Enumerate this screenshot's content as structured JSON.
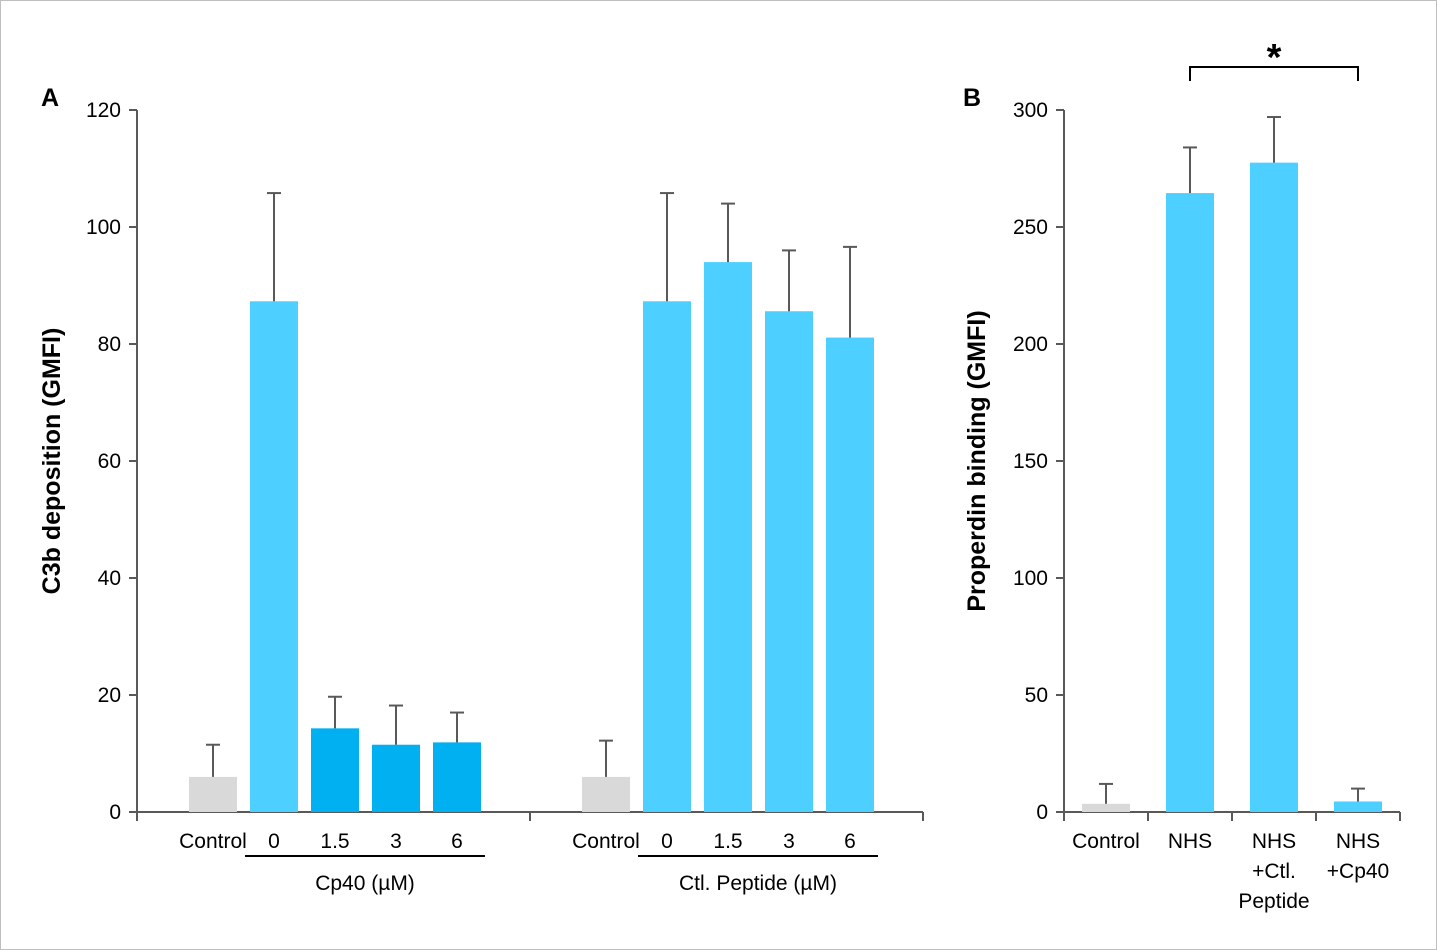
{
  "chart_data": [
    {
      "panel_label": "A",
      "type": "bar",
      "ylabel": "C3b deposition (GMFI)",
      "ylim": [
        0,
        120
      ],
      "yticks": [
        "0",
        "20",
        "40",
        "60",
        "80",
        "100",
        "120"
      ],
      "colors": {
        "control": "#d9d9d9",
        "bar": "#4dcfff",
        "cp40": "#00b0f0",
        "error": "#595959"
      },
      "groups": [
        {
          "label": "Cp40 (µM)",
          "categories": [
            "Control",
            "0",
            "1.5",
            "3",
            "6"
          ],
          "values": [
            6,
            87.3,
            14.3,
            11.5,
            11.9
          ],
          "errors": [
            5.5,
            18.5,
            5.4,
            6.7,
            5.1
          ],
          "bar_colors": [
            "control",
            "bar",
            "cp40",
            "cp40",
            "cp40"
          ]
        },
        {
          "label": "Ctl. Peptide (µM)",
          "categories": [
            "Control",
            "0",
            "1.5",
            "3",
            "6"
          ],
          "values": [
            6,
            87.3,
            94,
            85.6,
            81.1
          ],
          "errors": [
            6.2,
            18.5,
            10,
            10.4,
            15.5
          ],
          "bar_colors": [
            "control",
            "bar",
            "bar",
            "bar",
            "bar"
          ]
        }
      ]
    },
    {
      "panel_label": "B",
      "type": "bar",
      "ylabel": "Properdin binding (GMFI)",
      "ylim": [
        0,
        300
      ],
      "yticks": [
        "0",
        "50",
        "100",
        "150",
        "200",
        "250",
        "300"
      ],
      "colors": {
        "control": "#d9d9d9",
        "bar": "#4dcfff",
        "error": "#595959"
      },
      "categories": [
        [
          "Control"
        ],
        [
          "NHS"
        ],
        [
          "NHS",
          "+Ctl.",
          "Peptide"
        ],
        [
          "NHS",
          "+Cp40"
        ]
      ],
      "values": [
        3.5,
        264.5,
        277.5,
        4.5
      ],
      "errors": [
        8.5,
        19.5,
        19.5,
        5.5
      ],
      "bar_colors": [
        "control",
        "bar",
        "bar",
        "bar"
      ],
      "significance": {
        "from": 1,
        "to": 3,
        "label": "*"
      }
    }
  ]
}
